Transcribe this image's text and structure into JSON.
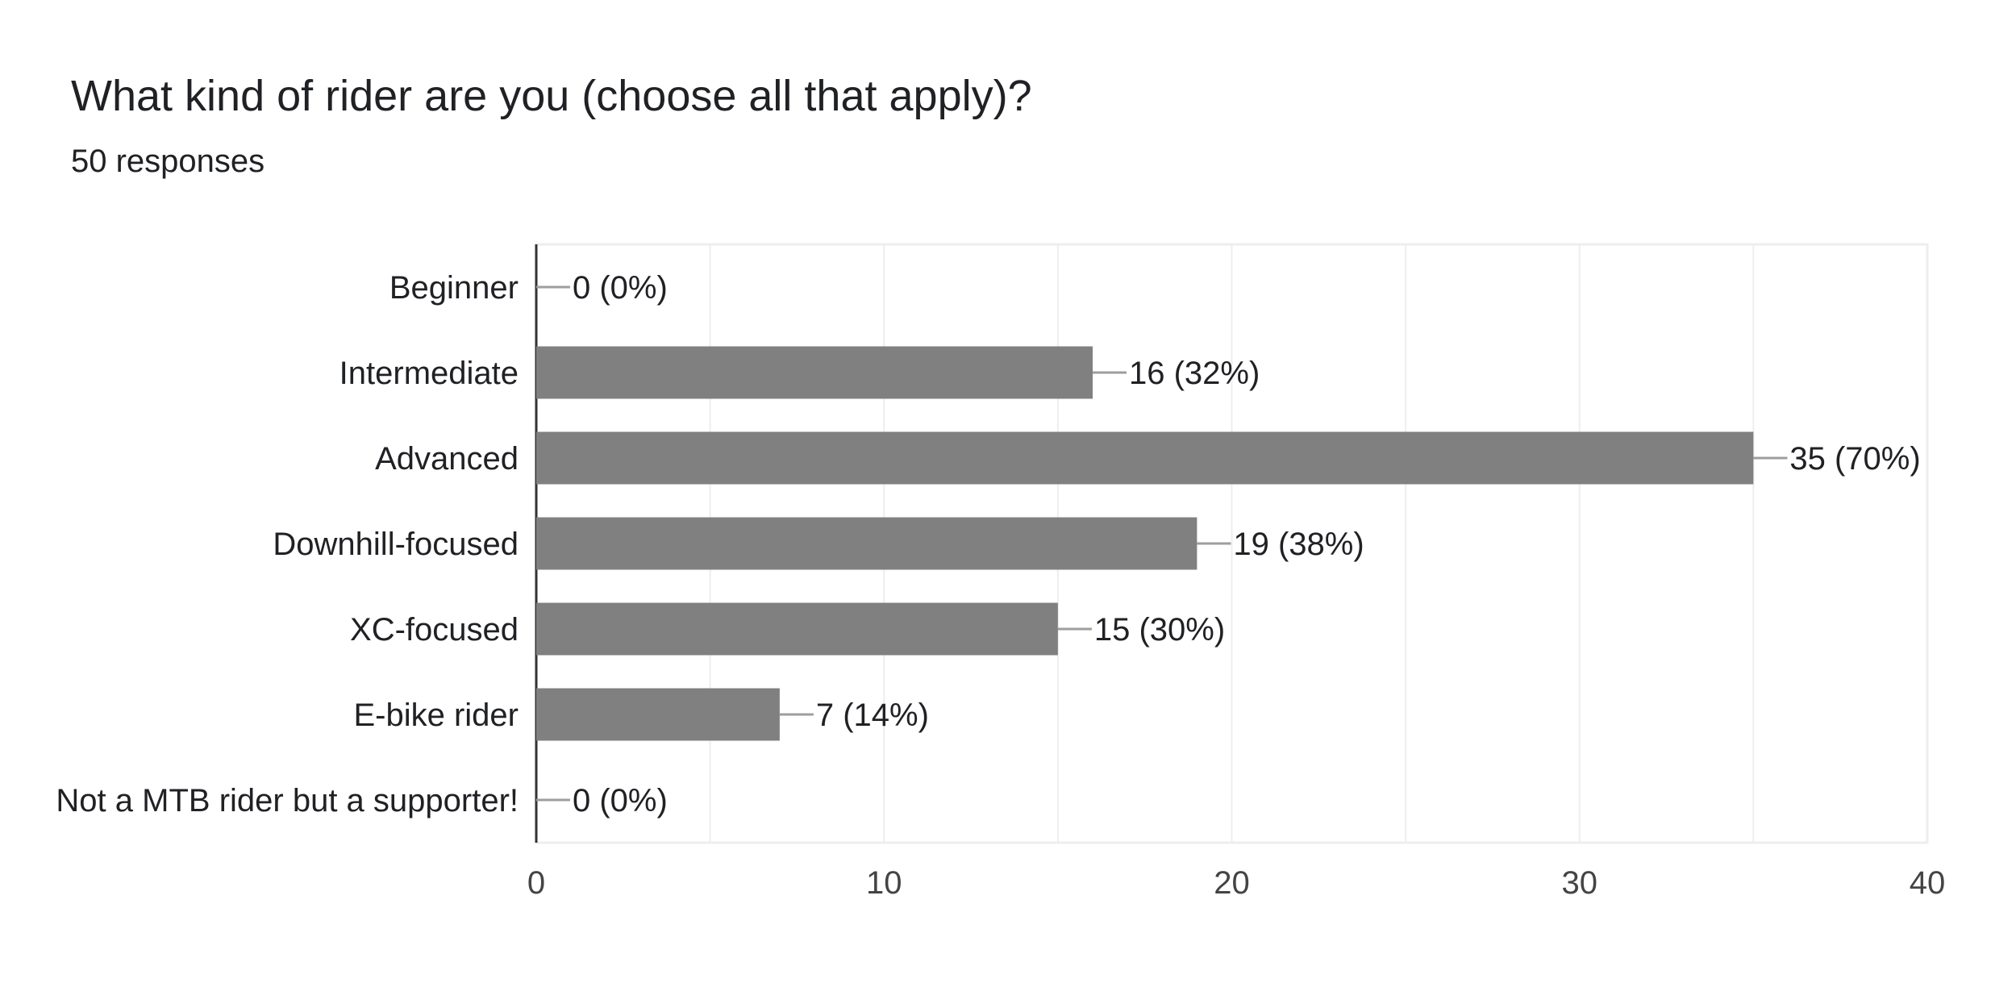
{
  "header": {
    "title": "What kind of rider are you (choose all that apply)?",
    "responses": "50 responses"
  },
  "colors": {
    "bar": "#808080",
    "grid": "#eeeeee",
    "axis": "#333333",
    "text": "#202124",
    "tick_text": "#444444",
    "leader": "#9e9e9e"
  },
  "chart_data": {
    "type": "bar",
    "orientation": "horizontal",
    "title": "What kind of rider are you (choose all that apply)?",
    "subtitle": "50 responses",
    "categories": [
      "Beginner",
      "Intermediate",
      "Advanced",
      "Downhill-focused",
      "XC-focused",
      "E-bike rider",
      "Not a MTB rider but a supporter!"
    ],
    "values": [
      0,
      16,
      35,
      19,
      15,
      7,
      0
    ],
    "data_labels": [
      "0 (0%)",
      "16 (32%)",
      "35 (70%)",
      "19 (38%)",
      "15 (30%)",
      "7 (14%)",
      "0 (0%)"
    ],
    "xlim": [
      0,
      40
    ],
    "xticks": [
      0,
      10,
      20,
      30,
      40
    ],
    "grid": true,
    "xlabel": "",
    "ylabel": ""
  }
}
